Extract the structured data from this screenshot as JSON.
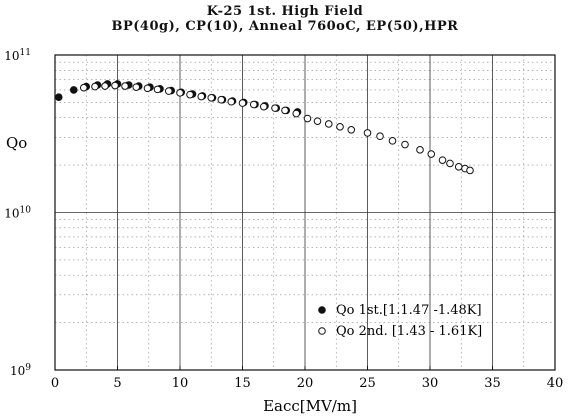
{
  "chart_data": {
    "type": "scatter",
    "title": "K-25 1st. High Field",
    "subtitle": "BP(40g), CP(10), Anneal 760oC, EP(50),HPR",
    "xlabel": "Eacc[MV/m]",
    "ylabel": "Qo",
    "xlim": [
      0,
      40
    ],
    "ylim": [
      1000000000,
      100000000000
    ],
    "yscale": "log",
    "x_ticks": [
      "0",
      "5",
      "10",
      "15",
      "20",
      "25",
      "30",
      "35",
      "40"
    ],
    "y_ticks": [
      {
        "base": "10",
        "exp": "9",
        "value": 1000000000
      },
      {
        "base": "10",
        "exp": "10",
        "value": 10000000000
      },
      {
        "base": "10",
        "exp": "11",
        "value": 100000000000
      }
    ],
    "grid": true,
    "legend_position": "bottom-right",
    "series": [
      {
        "name": "Qo  1st.[1.1.47  -1.48K]",
        "marker": "filled-circle",
        "color": "#111111",
        "x": [
          0.3,
          1.5,
          2.5,
          3.4,
          4.2,
          5.0,
          5.9,
          6.7,
          7.6,
          8.4,
          9.3,
          10.1,
          11.0,
          11.8,
          12.6,
          13.4,
          14.2,
          15.1,
          16.0,
          16.8,
          17.7,
          18.5,
          19.4
        ],
        "y": [
          54000000000,
          60000000000,
          63000000000,
          64500000000,
          65500000000,
          65500000000,
          64500000000,
          63500000000,
          62500000000,
          61000000000,
          59500000000,
          58000000000,
          56500000000,
          55000000000,
          53500000000,
          52000000000,
          51000000000,
          50000000000,
          48500000000,
          47500000000,
          46000000000,
          44500000000,
          43500000000
        ]
      },
      {
        "name": "Qo  2nd. [1.43 - 1.61K]",
        "marker": "open-circle",
        "color": "#111111",
        "x": [
          2.3,
          3.2,
          4.0,
          4.8,
          5.6,
          6.5,
          7.4,
          8.2,
          9.1,
          10.0,
          10.8,
          11.7,
          12.5,
          13.3,
          14.1,
          15.0,
          15.9,
          16.7,
          17.6,
          18.4,
          19.3,
          20.2,
          21.0,
          21.9,
          22.8,
          23.7,
          25.0,
          26.0,
          27.0,
          28.0,
          29.2,
          30.1,
          31.0,
          31.6,
          32.3,
          32.8,
          33.2
        ],
        "y": [
          62000000000,
          63000000000,
          63500000000,
          64000000000,
          63500000000,
          62500000000,
          61500000000,
          60500000000,
          59000000000,
          57500000000,
          56000000000,
          54500000000,
          53500000000,
          52000000000,
          50500000000,
          49500000000,
          48500000000,
          47000000000,
          46000000000,
          44500000000,
          42500000000,
          39500000000,
          38000000000,
          36500000000,
          35000000000,
          33500000000,
          32000000000,
          30500000000,
          28500000000,
          27000000000,
          25000000000,
          23500000000,
          21500000000,
          20500000000,
          19500000000,
          19000000000,
          18500000000
        ]
      }
    ]
  }
}
